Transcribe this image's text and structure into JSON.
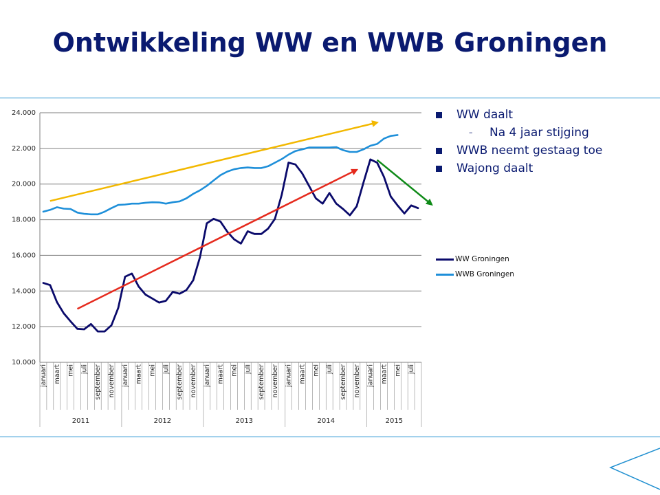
{
  "slide": {
    "title": "Ontwikkeling WW en WWB Groningen",
    "bullets": [
      {
        "level": 1,
        "text": "WW daalt"
      },
      {
        "level": 2,
        "text": "Na 4 jaar stijging"
      },
      {
        "level": 1,
        "text": "WWB neemt gestaag toe"
      },
      {
        "level": 1,
        "text": "Wajong daalt"
      }
    ],
    "colors": {
      "title": "#0a1a70",
      "rule": "#1f8fd0"
    }
  },
  "chart_data": {
    "type": "line",
    "ylim": [
      10000,
      24000
    ],
    "yticks": [
      "10.000",
      "12.000",
      "14.000",
      "16.000",
      "18.000",
      "20.000",
      "22.000",
      "24.000"
    ],
    "month_labels": [
      "januari",
      "maart",
      "mei",
      "juli",
      "september",
      "november"
    ],
    "years": [
      "2011",
      "2012",
      "2013",
      "2014",
      "2015"
    ],
    "months_per_year": [
      12,
      12,
      12,
      12,
      8
    ],
    "grid": true,
    "legend_position": "right",
    "series": [
      {
        "name": "WW Groningen",
        "color": "#0a0a6b",
        "values": [
          14450,
          14330,
          13380,
          12750,
          12300,
          11880,
          11850,
          12150,
          11730,
          11730,
          12080,
          13050,
          14800,
          14980,
          14250,
          13800,
          13580,
          13350,
          13450,
          13950,
          13850,
          14050,
          14600,
          15900,
          17800,
          18050,
          17900,
          17330,
          16900,
          16660,
          17350,
          17200,
          17200,
          17500,
          18050,
          19400,
          21200,
          21100,
          20600,
          19900,
          19200,
          18900,
          19500,
          18900,
          18600,
          18250,
          18750,
          20100,
          21380,
          21200,
          20400,
          19300,
          18800,
          18350,
          18800,
          18650
        ]
      },
      {
        "name": "WWB Groningen",
        "color": "#1e8fd9",
        "values": [
          18450,
          18550,
          18700,
          18620,
          18600,
          18400,
          18330,
          18300,
          18300,
          18450,
          18650,
          18830,
          18850,
          18900,
          18900,
          18950,
          18980,
          18970,
          18900,
          18980,
          19030,
          19200,
          19450,
          19650,
          19900,
          20200,
          20500,
          20700,
          20830,
          20900,
          20930,
          20900,
          20900,
          21000,
          21200,
          21400,
          21650,
          21850,
          21950,
          22050,
          22050,
          22050,
          22050,
          22070,
          21900,
          21800,
          21800,
          21950,
          22150,
          22250,
          22550,
          22700,
          22750
        ]
      }
    ],
    "trend_arrows": [
      {
        "color": "#f2b800",
        "from": {
          "month": 1,
          "value": 19050
        },
        "to": {
          "month": 49,
          "value": 23450
        }
      },
      {
        "color": "#e52a1d",
        "from": {
          "month": 5,
          "value": 13000
        },
        "to": {
          "month": 46,
          "value": 20800
        }
      },
      {
        "color": "#0e8a17",
        "from": {
          "month": 49,
          "value": 21350
        },
        "to": {
          "month": 57,
          "value": 18850
        }
      }
    ]
  }
}
